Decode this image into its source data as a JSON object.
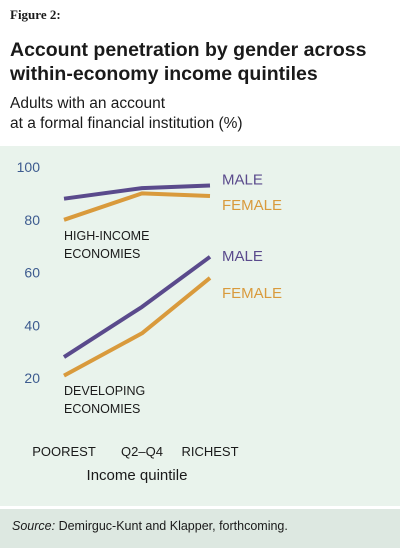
{
  "figure_label": "Figure 2:",
  "title_lines": [
    "Account penetration by gender across",
    "within-economy income quintiles"
  ],
  "subtitle_lines": [
    "Adults with an account",
    "at a formal financial institution (%)"
  ],
  "source": {
    "label": "Source:",
    "text": " Demirguc-Kunt and Klapper, forthcoming."
  },
  "colors": {
    "male": "#5a4a8c",
    "female": "#d99a3c",
    "tick": "#3d5b8f",
    "panel": "#e9f3ec",
    "source_panel": "#dde8e1"
  },
  "chart_data": {
    "type": "line",
    "xlabel": "Income quintile",
    "categories": [
      "POOREST",
      "Q2–Q4",
      "RICHEST"
    ],
    "ylim": [
      15,
      100
    ],
    "yticks": [
      20,
      40,
      60,
      80,
      100
    ],
    "grid": false,
    "groups": [
      {
        "name_lines": [
          "HIGH-INCOME",
          "ECONOMIES"
        ],
        "series": [
          {
            "name": "MALE",
            "values": [
              88,
              92,
              93
            ]
          },
          {
            "name": "FEMALE",
            "values": [
              80,
              90,
              89
            ]
          }
        ]
      },
      {
        "name_lines": [
          "DEVELOPING",
          "ECONOMIES"
        ],
        "series": [
          {
            "name": "MALE",
            "values": [
              28,
              47,
              66
            ]
          },
          {
            "name": "FEMALE",
            "values": [
              21,
              37,
              58
            ]
          }
        ]
      }
    ]
  }
}
